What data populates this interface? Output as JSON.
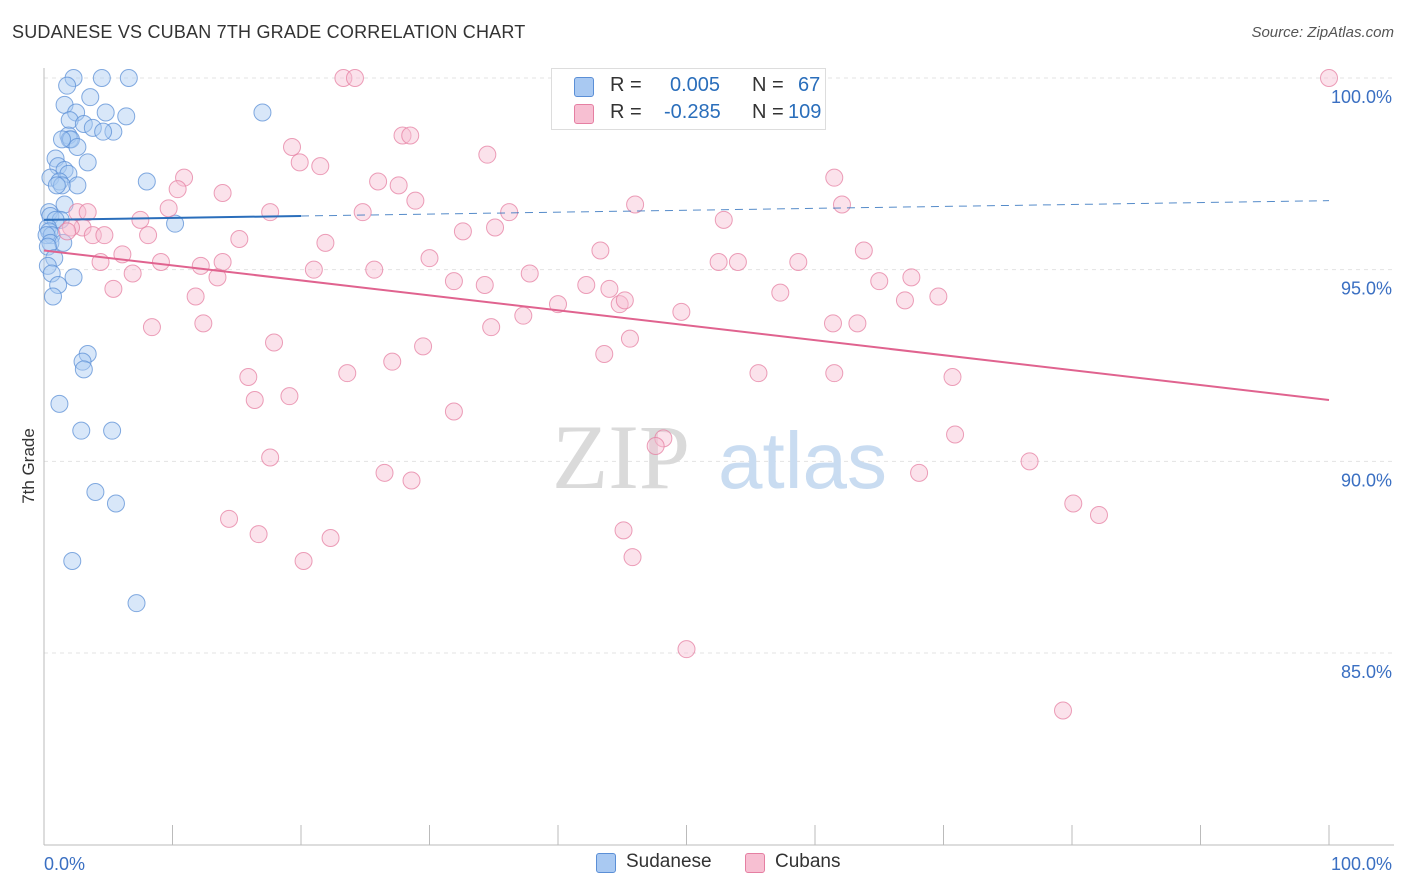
{
  "header": {
    "title": "SUDANESE VS CUBAN 7TH GRADE CORRELATION CHART",
    "source": "Source: ZipAtlas.com"
  },
  "legend": {
    "r_label": "R =",
    "n_label": "N =",
    "rows": [
      {
        "name": "Sudanese",
        "r": "0.005",
        "n": "67"
      },
      {
        "name": "Cubans",
        "r": "-0.285",
        "n": "109"
      }
    ]
  },
  "watermark": {
    "part1": "ZIP",
    "part2": "atlas"
  },
  "colors": {
    "sudanese_fill": "#a9c9f2",
    "sudanese_stroke": "#5b8fd6",
    "sudanese_line": "#2a6ebb",
    "cubans_fill": "#f7bfd2",
    "cubans_stroke": "#e57fa2",
    "cubans_line": "#e0638f",
    "axis_label": "#3a6fc2"
  },
  "chart_data": {
    "type": "scatter",
    "title": "SUDANESE VS CUBAN 7TH GRADE CORRELATION CHART",
    "xlabel": "",
    "ylabel": "7th Grade",
    "xlim": [
      0,
      100
    ],
    "ylim": [
      80.5,
      100.8
    ],
    "x_tick_labels": [
      {
        "value": 0,
        "label": "0.0%"
      },
      {
        "value": 100,
        "label": "100.0%"
      }
    ],
    "y_tick_labels": [
      {
        "value": 100,
        "label": "100.0%"
      },
      {
        "value": 95,
        "label": "95.0%"
      },
      {
        "value": 90,
        "label": "90.0%"
      },
      {
        "value": 85,
        "label": "85.0%"
      }
    ],
    "series": [
      {
        "name": "Sudanese",
        "r": 0.005,
        "n": 67,
        "trend": {
          "x": [
            0,
            20
          ],
          "y": [
            96.3,
            96.4
          ],
          "dashed_extension": {
            "x": [
              20,
              100
            ],
            "y": [
              96.4,
              96.8
            ]
          }
        },
        "points": [
          [
            2.3,
            100.0
          ],
          [
            4.5,
            100.0
          ],
          [
            6.6,
            100.0
          ],
          [
            1.8,
            99.8
          ],
          [
            3.6,
            99.5
          ],
          [
            1.6,
            99.3
          ],
          [
            2.5,
            99.1
          ],
          [
            4.8,
            99.1
          ],
          [
            6.4,
            99.0
          ],
          [
            17.0,
            99.1
          ],
          [
            2.0,
            98.9
          ],
          [
            3.1,
            98.8
          ],
          [
            3.8,
            98.7
          ],
          [
            5.4,
            98.6
          ],
          [
            4.6,
            98.6
          ],
          [
            1.9,
            98.5
          ],
          [
            2.0,
            98.4
          ],
          [
            2.1,
            98.4
          ],
          [
            1.4,
            98.4
          ],
          [
            2.6,
            98.2
          ],
          [
            0.9,
            97.9
          ],
          [
            3.4,
            97.8
          ],
          [
            1.1,
            97.7
          ],
          [
            1.6,
            97.6
          ],
          [
            1.9,
            97.5
          ],
          [
            0.5,
            97.4
          ],
          [
            1.2,
            97.3
          ],
          [
            8.0,
            97.3
          ],
          [
            1.4,
            97.2
          ],
          [
            2.6,
            97.2
          ],
          [
            1.0,
            97.2
          ],
          [
            0.4,
            96.5
          ],
          [
            1.6,
            96.7
          ],
          [
            0.5,
            96.4
          ],
          [
            1.3,
            96.3
          ],
          [
            0.9,
            96.3
          ],
          [
            10.2,
            96.2
          ],
          [
            0.3,
            96.1
          ],
          [
            0.4,
            96.0
          ],
          [
            0.6,
            95.9
          ],
          [
            0.2,
            95.9
          ],
          [
            0.5,
            95.7
          ],
          [
            1.5,
            95.7
          ],
          [
            0.3,
            95.6
          ],
          [
            0.8,
            95.3
          ],
          [
            0.3,
            95.1
          ],
          [
            0.6,
            94.9
          ],
          [
            2.3,
            94.8
          ],
          [
            1.1,
            94.6
          ],
          [
            0.7,
            94.3
          ],
          [
            3.4,
            92.8
          ],
          [
            3.0,
            92.6
          ],
          [
            3.1,
            92.4
          ],
          [
            1.2,
            91.5
          ],
          [
            2.9,
            90.8
          ],
          [
            5.3,
            90.8
          ],
          [
            4.0,
            89.2
          ],
          [
            5.6,
            88.9
          ],
          [
            2.2,
            87.4
          ],
          [
            7.2,
            86.3
          ]
        ]
      },
      {
        "name": "Cubans",
        "r": -0.285,
        "n": 109,
        "trend": {
          "x": [
            0,
            100
          ],
          "y": [
            95.5,
            91.6
          ]
        },
        "points": [
          [
            23.3,
            100.0
          ],
          [
            24.2,
            100.0
          ],
          [
            100.0,
            100.0
          ],
          [
            27.9,
            98.5
          ],
          [
            28.5,
            98.5
          ],
          [
            19.3,
            98.2
          ],
          [
            34.5,
            98.0
          ],
          [
            19.9,
            97.8
          ],
          [
            21.5,
            97.7
          ],
          [
            26.0,
            97.3
          ],
          [
            10.9,
            97.4
          ],
          [
            10.4,
            97.1
          ],
          [
            27.6,
            97.2
          ],
          [
            13.9,
            97.0
          ],
          [
            28.9,
            96.8
          ],
          [
            9.7,
            96.6
          ],
          [
            17.6,
            96.5
          ],
          [
            2.6,
            96.5
          ],
          [
            3.4,
            96.5
          ],
          [
            24.8,
            96.5
          ],
          [
            36.2,
            96.5
          ],
          [
            46.0,
            96.7
          ],
          [
            52.9,
            96.3
          ],
          [
            62.1,
            96.7
          ],
          [
            61.5,
            97.4
          ],
          [
            7.5,
            96.3
          ],
          [
            3.0,
            96.1
          ],
          [
            2.1,
            96.1
          ],
          [
            1.8,
            96.0
          ],
          [
            3.8,
            95.9
          ],
          [
            4.7,
            95.9
          ],
          [
            8.1,
            95.9
          ],
          [
            32.6,
            96.0
          ],
          [
            35.1,
            96.1
          ],
          [
            15.2,
            95.8
          ],
          [
            21.9,
            95.7
          ],
          [
            43.3,
            95.5
          ],
          [
            6.1,
            95.4
          ],
          [
            4.4,
            95.2
          ],
          [
            9.1,
            95.2
          ],
          [
            12.2,
            95.1
          ],
          [
            13.9,
            95.2
          ],
          [
            52.5,
            95.2
          ],
          [
            54.0,
            95.2
          ],
          [
            58.7,
            95.2
          ],
          [
            63.8,
            95.5
          ],
          [
            30.0,
            95.3
          ],
          [
            21.0,
            95.0
          ],
          [
            25.7,
            95.0
          ],
          [
            37.8,
            94.9
          ],
          [
            13.5,
            94.8
          ],
          [
            6.9,
            94.9
          ],
          [
            31.9,
            94.7
          ],
          [
            42.2,
            94.6
          ],
          [
            5.4,
            94.5
          ],
          [
            11.8,
            94.3
          ],
          [
            34.3,
            94.6
          ],
          [
            40.0,
            94.1
          ],
          [
            44.0,
            94.5
          ],
          [
            44.8,
            94.1
          ],
          [
            45.2,
            94.2
          ],
          [
            65.0,
            94.7
          ],
          [
            67.5,
            94.8
          ],
          [
            69.6,
            94.3
          ],
          [
            67.0,
            94.2
          ],
          [
            57.3,
            94.4
          ],
          [
            37.3,
            93.8
          ],
          [
            49.6,
            93.9
          ],
          [
            12.4,
            93.6
          ],
          [
            34.8,
            93.5
          ],
          [
            61.4,
            93.6
          ],
          [
            63.3,
            93.6
          ],
          [
            8.4,
            93.5
          ],
          [
            17.9,
            93.1
          ],
          [
            29.5,
            93.0
          ],
          [
            45.6,
            93.2
          ],
          [
            43.6,
            92.8
          ],
          [
            27.1,
            92.6
          ],
          [
            23.6,
            92.3
          ],
          [
            55.6,
            92.3
          ],
          [
            61.5,
            92.3
          ],
          [
            70.7,
            92.2
          ],
          [
            15.9,
            92.2
          ],
          [
            16.4,
            91.6
          ],
          [
            19.1,
            91.7
          ],
          [
            31.9,
            91.3
          ],
          [
            70.9,
            90.7
          ],
          [
            48.2,
            90.6
          ],
          [
            47.6,
            90.4
          ],
          [
            17.6,
            90.1
          ],
          [
            26.5,
            89.7
          ],
          [
            28.6,
            89.5
          ],
          [
            76.7,
            90.0
          ],
          [
            68.1,
            89.7
          ],
          [
            80.1,
            88.9
          ],
          [
            82.1,
            88.6
          ],
          [
            14.4,
            88.5
          ],
          [
            16.7,
            88.1
          ],
          [
            22.3,
            88.0
          ],
          [
            45.1,
            88.2
          ],
          [
            20.2,
            87.4
          ],
          [
            45.8,
            87.5
          ],
          [
            50.0,
            85.1
          ],
          [
            79.3,
            83.5
          ]
        ]
      }
    ],
    "grid": true,
    "legend_position": "top-center"
  }
}
